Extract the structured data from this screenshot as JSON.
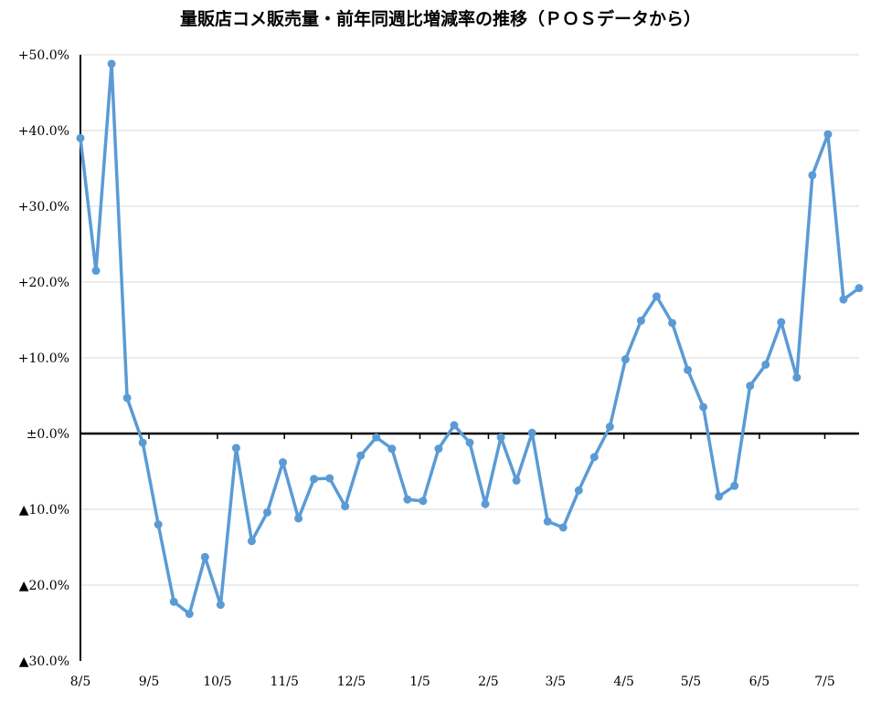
{
  "chart_data": {
    "type": "line",
    "title": "量販店コメ販売量・前年同週比増減率の推移（ＰＯＳデータから）",
    "xlabel": "",
    "ylabel": "",
    "ylim": [
      -30,
      50
    ],
    "yticks": [
      {
        "value": 50,
        "label": "+50.0%"
      },
      {
        "value": 40,
        "label": "+40.0%"
      },
      {
        "value": 30,
        "label": "+30.0%"
      },
      {
        "value": 20,
        "label": "+20.0%"
      },
      {
        "value": 10,
        "label": "+10.0%"
      },
      {
        "value": 0,
        "label": "±0.0%"
      },
      {
        "value": -10,
        "label": "▲10.0%"
      },
      {
        "value": -20,
        "label": "▲20.0%"
      },
      {
        "value": -30,
        "label": "▲30.0%"
      }
    ],
    "xticks": [
      {
        "index": 0,
        "label": "8/5"
      },
      {
        "index": 4.4,
        "label": "9/5"
      },
      {
        "index": 8.8,
        "label": "10/5"
      },
      {
        "index": 13.1,
        "label": "11/5"
      },
      {
        "index": 17.4,
        "label": "12/5"
      },
      {
        "index": 21.8,
        "label": "1/5"
      },
      {
        "index": 26.2,
        "label": "2/5"
      },
      {
        "index": 30.5,
        "label": "3/5"
      },
      {
        "index": 34.9,
        "label": "4/5"
      },
      {
        "index": 39.2,
        "label": "5/5"
      },
      {
        "index": 43.6,
        "label": "6/5"
      },
      {
        "index": 47.8,
        "label": "7/5"
      }
    ],
    "grid": true,
    "legend": "none",
    "series": [
      {
        "values": [
          39.0,
          21.5,
          48.8,
          4.7,
          -1.2,
          -12.0,
          -22.2,
          -23.8,
          -16.3,
          -22.6,
          -1.9,
          -14.2,
          -10.4,
          -3.8,
          -11.2,
          -6.0,
          -5.9,
          -9.6,
          -2.9,
          -0.5,
          -2.0,
          -8.7,
          -8.9,
          -2.0,
          1.1,
          -1.2,
          -9.3,
          -0.5,
          -6.2,
          0.1,
          -11.6,
          -12.4,
          -7.5,
          -3.1,
          0.9,
          9.8,
          14.9,
          18.1,
          14.6,
          8.4,
          3.5,
          -8.3,
          -6.9,
          6.3,
          9.1,
          14.7,
          7.4,
          34.1,
          39.5,
          17.7,
          19.2
        ],
        "color": "#5b9bd5"
      }
    ]
  }
}
